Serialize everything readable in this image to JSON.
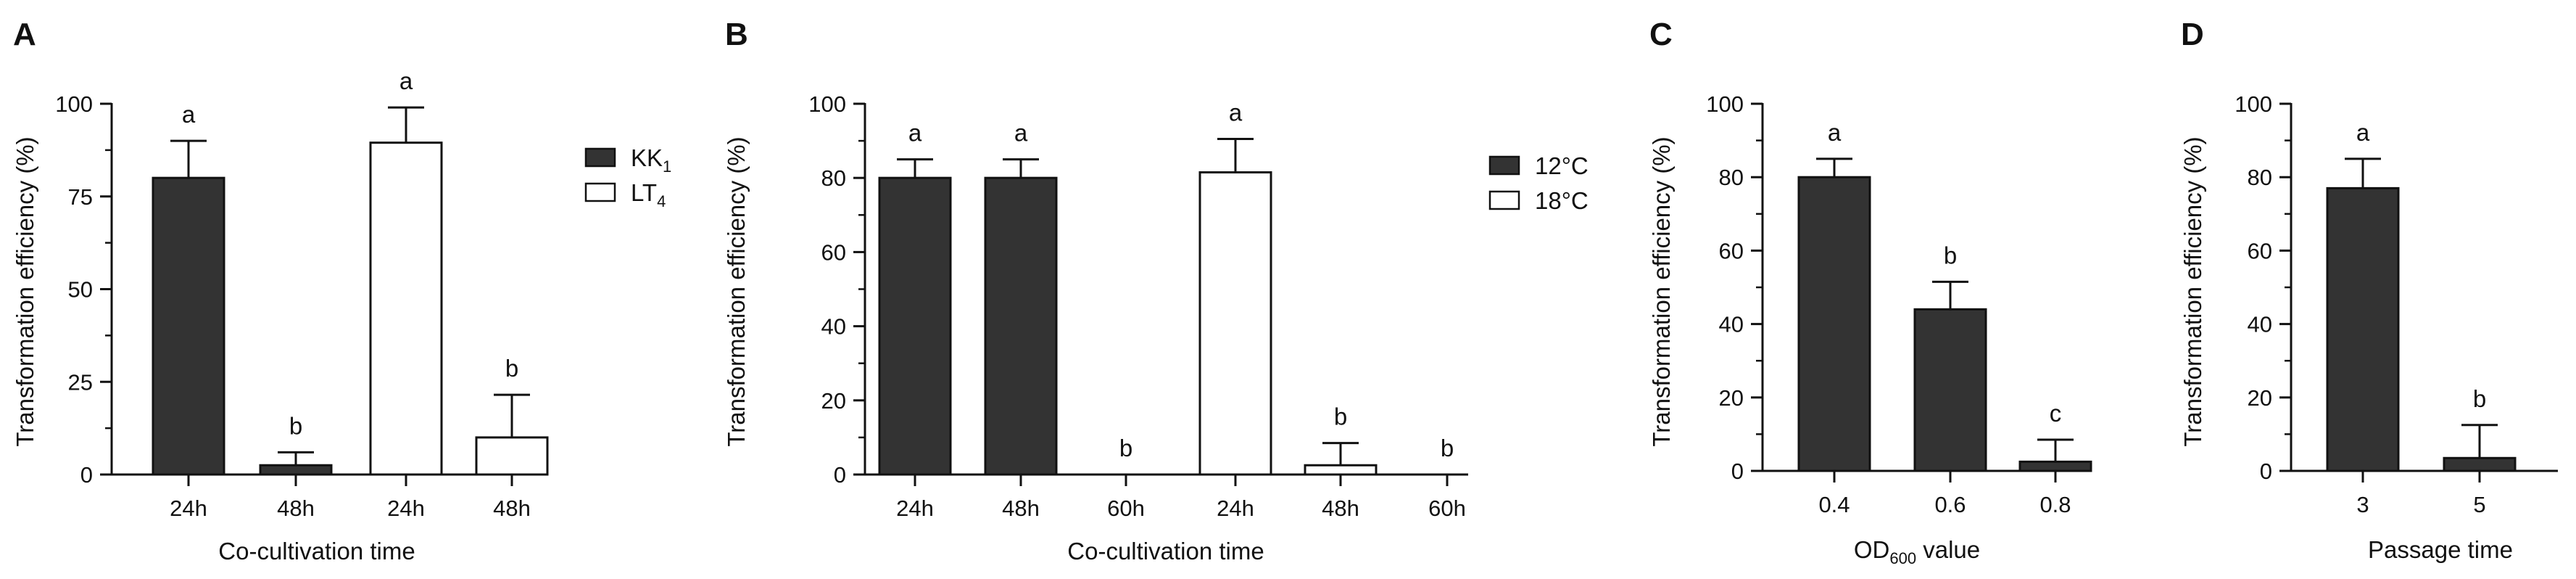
{
  "chart_data": [
    {
      "type": "bar",
      "panel": "A",
      "ylabel": "Transformation efficiency (%)",
      "xlabel": "Co-cultivation time",
      "ylim": [
        0,
        100
      ],
      "yticks": [
        0,
        25,
        50,
        75,
        100
      ],
      "categories": [
        "24h",
        "48h",
        "24h",
        "48h"
      ],
      "series": [
        {
          "name": "KK1",
          "legend_main": "KK",
          "legend_sub": "1",
          "fill": "#333333",
          "indices": [
            0,
            1
          ]
        },
        {
          "name": "LT4",
          "legend_main": "LT",
          "legend_sub": "4",
          "fill": "#ffffff",
          "indices": [
            2,
            3
          ]
        }
      ],
      "values": [
        80,
        2.5,
        89.5,
        10
      ],
      "errors": [
        10,
        3.5,
        9.5,
        11.5
      ],
      "significance": [
        "a",
        "b",
        "a",
        "b"
      ]
    },
    {
      "type": "bar",
      "panel": "B",
      "ylabel": "Transformation efficiency (%)",
      "xlabel": "Co-cultivation time",
      "ylim": [
        0,
        100
      ],
      "yticks": [
        0,
        20,
        40,
        60,
        80,
        100
      ],
      "categories": [
        "24h",
        "48h",
        "60h",
        "24h",
        "48h",
        "60h"
      ],
      "series": [
        {
          "name": "12°C",
          "legend_main": "12°C",
          "legend_sub": "",
          "fill": "#333333",
          "indices": [
            0,
            1,
            2
          ]
        },
        {
          "name": "18°C",
          "legend_main": "18°C",
          "legend_sub": "",
          "fill": "#ffffff",
          "indices": [
            3,
            4,
            5
          ]
        }
      ],
      "values": [
        80,
        80,
        0,
        81.5,
        2.5,
        0
      ],
      "errors": [
        5,
        5,
        0,
        9,
        6,
        0
      ],
      "significance": [
        "a",
        "a",
        "b",
        "a",
        "b",
        "b"
      ]
    },
    {
      "type": "bar",
      "panel": "C",
      "ylabel": "Transformation efficiency (%)",
      "xlabel_main": "OD",
      "xlabel_sub": "600",
      "xlabel_rest": " value",
      "ylim": [
        0,
        100
      ],
      "yticks": [
        0,
        20,
        40,
        60,
        80,
        100
      ],
      "categories": [
        "0.4",
        "0.6",
        "0.8"
      ],
      "series": [
        {
          "name": "OD600",
          "fill": "#333333",
          "indices": [
            0,
            1,
            2
          ]
        }
      ],
      "values": [
        80,
        44,
        2.5
      ],
      "errors": [
        5,
        7.5,
        6
      ],
      "significance": [
        "a",
        "b",
        "c"
      ]
    },
    {
      "type": "bar",
      "panel": "D",
      "ylabel": "Transformation efficiency (%)",
      "xlabel": "Passage time",
      "ylim": [
        0,
        100
      ],
      "yticks": [
        0,
        20,
        40,
        60,
        80,
        100
      ],
      "categories": [
        "3",
        "5"
      ],
      "series": [
        {
          "name": "Passage",
          "fill": "#333333",
          "indices": [
            0,
            1
          ]
        }
      ],
      "values": [
        77,
        3.5
      ],
      "errors": [
        8,
        9
      ],
      "significance": [
        "a",
        "b"
      ]
    }
  ]
}
